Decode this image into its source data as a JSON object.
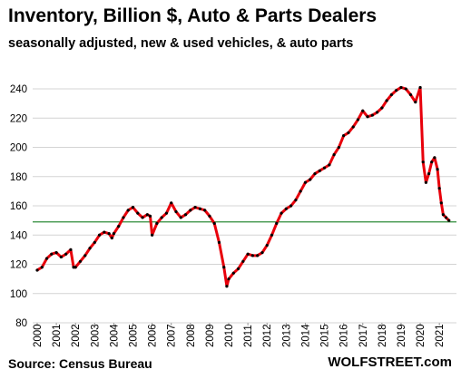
{
  "title": "Inventory, Billion $, Auto & Parts Dealers",
  "subtitle": "seasonally adjusted, new & used vehicles, & auto parts",
  "source": "Source: Census Bureau",
  "watermark": "WOLFSTREET.com",
  "colors": {
    "line": "#e8000b",
    "markers": "#000000",
    "reference_line": "#2e8b3a",
    "grid": "#d4d4d4"
  },
  "chart_data": {
    "type": "line",
    "title": "Inventory, Billion $, Auto & Parts Dealers",
    "subtitle": "seasonally adjusted, new & used vehicles, & auto parts",
    "xlabel": "",
    "ylabel": "",
    "xlim": [
      2000,
      2021.75
    ],
    "ylim": [
      80,
      245
    ],
    "yticks": [
      80,
      100,
      120,
      140,
      160,
      180,
      200,
      220,
      240
    ],
    "xticks": [
      "2000",
      "2001",
      "2002",
      "2003",
      "2004",
      "2005",
      "2006",
      "2007",
      "2008",
      "2009",
      "2010",
      "2011",
      "2012",
      "2013",
      "2014",
      "2015",
      "2016",
      "2017",
      "2018",
      "2019",
      "2020",
      "2021"
    ],
    "grid": "horizontal",
    "reference_line": {
      "y": 149
    },
    "series": [
      {
        "x": [
          2000.0,
          2000.25,
          2000.5,
          2000.75,
          2001.0,
          2001.25,
          2001.5,
          2001.75,
          2001.9,
          2002.0,
          2002.25,
          2002.5,
          2002.75,
          2003.0,
          2003.25,
          2003.5,
          2003.75,
          2003.9,
          2004.0,
          2004.25,
          2004.5,
          2004.75,
          2005.0,
          2005.25,
          2005.5,
          2005.75,
          2005.9,
          2006.0,
          2006.25,
          2006.5,
          2006.75,
          2007.0,
          2007.25,
          2007.5,
          2007.75,
          2008.0,
          2008.25,
          2008.5,
          2008.75,
          2009.0,
          2009.25,
          2009.5,
          2009.75,
          2009.9,
          2010.0,
          2010.25,
          2010.5,
          2010.75,
          2011.0,
          2011.25,
          2011.5,
          2011.75,
          2012.0,
          2012.25,
          2012.5,
          2012.75,
          2013.0,
          2013.25,
          2013.5,
          2013.75,
          2014.0,
          2014.25,
          2014.5,
          2014.75,
          2015.0,
          2015.25,
          2015.5,
          2015.75,
          2016.0,
          2016.25,
          2016.5,
          2016.75,
          2017.0,
          2017.25,
          2017.5,
          2017.75,
          2018.0,
          2018.25,
          2018.5,
          2018.75,
          2019.0,
          2019.25,
          2019.5,
          2019.75,
          2020.0,
          2020.15,
          2020.3,
          2020.45,
          2020.6,
          2020.75,
          2020.9,
          2021.0,
          2021.1,
          2021.2,
          2021.35,
          2021.5
        ],
        "y": [
          116,
          118,
          124,
          127,
          128,
          125,
          127,
          130,
          118,
          118,
          122,
          126,
          131,
          135,
          140,
          142,
          141,
          138,
          141,
          146,
          152,
          157,
          159,
          155,
          152,
          154,
          153,
          140,
          148,
          152,
          155,
          162,
          156,
          152,
          154,
          157,
          159,
          158,
          157,
          153,
          148,
          135,
          118,
          105,
          110,
          114,
          117,
          122,
          127,
          126,
          126,
          128,
          133,
          140,
          148,
          155,
          158,
          160,
          164,
          170,
          176,
          178,
          182,
          184,
          186,
          188,
          195,
          200,
          208,
          210,
          214,
          219,
          225,
          221,
          222,
          224,
          227,
          232,
          236,
          239,
          241,
          240,
          236,
          231,
          241,
          190,
          176,
          182,
          190,
          193,
          185,
          172,
          162,
          154,
          152,
          150
        ]
      }
    ]
  }
}
